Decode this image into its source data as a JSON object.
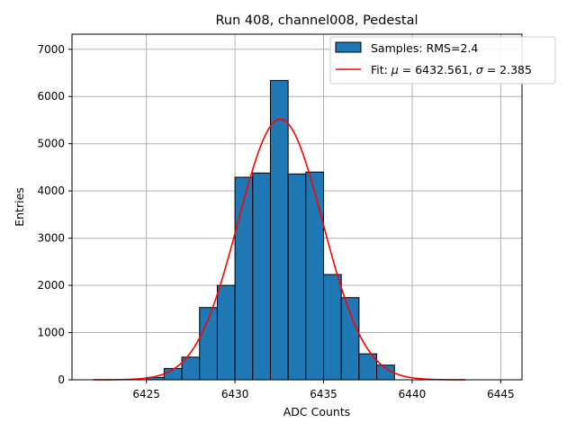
{
  "chart_data": {
    "type": "bar",
    "title": "Run 408, channel008, Pedestal",
    "xlabel": "ADC Counts",
    "ylabel": "Entries",
    "xlim": [
      6420.8,
      6446.2
    ],
    "ylim": [
      0,
      7320
    ],
    "grid": true,
    "legend_position": "top-right",
    "x_ticks": [
      6425,
      6430,
      6435,
      6440,
      6445
    ],
    "y_ticks": [
      0,
      1000,
      2000,
      3000,
      4000,
      5000,
      6000,
      7000
    ],
    "bin_edges": [
      6425,
      6426,
      6427,
      6428,
      6429,
      6430,
      6431,
      6432,
      6433,
      6434,
      6435,
      6436,
      6437,
      6438,
      6439
    ],
    "counts": [
      50,
      240,
      480,
      1530,
      2000,
      4290,
      4380,
      6340,
      4360,
      4400,
      2230,
      1740,
      550,
      310
    ],
    "fit": {
      "mu": 6432.561,
      "sigma": 2.385,
      "peak": 5520,
      "x_range": [
        6422,
        6443
      ]
    },
    "legend": [
      {
        "label": "Samples: RMS=2.4",
        "kind": "bar"
      },
      {
        "label_prefix": "Fit: ",
        "mu_symbol": "μ",
        "mu_text": " = 6432.561, ",
        "sigma_symbol": "σ",
        "sigma_text": " = 2.385",
        "kind": "line"
      }
    ],
    "colors": {
      "bar_fill": "#1f77b4",
      "bar_edge": "#000000",
      "fit_line": "#ff0000",
      "grid": "#b0b0b0"
    }
  }
}
